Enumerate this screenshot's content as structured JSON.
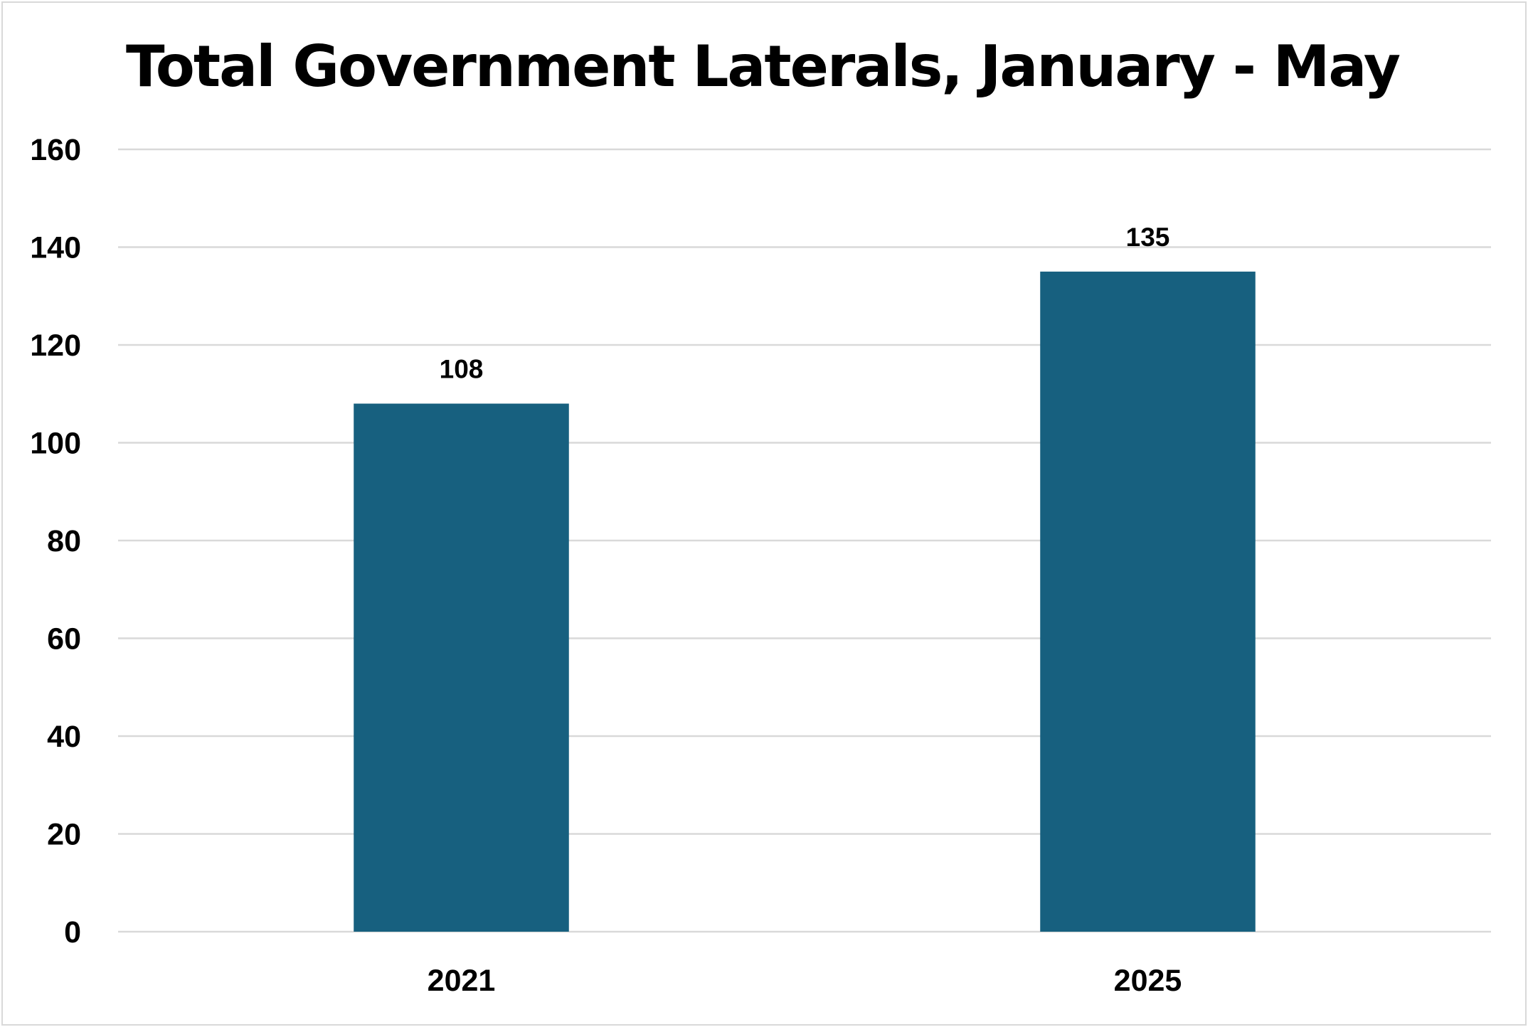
{
  "chart_data": {
    "type": "bar",
    "title": "Total Government Laterals, January - May",
    "categories": [
      "2021",
      "2025"
    ],
    "values": [
      108,
      135
    ],
    "data_labels": [
      "108",
      "135"
    ],
    "xlabel": "",
    "ylabel": "",
    "ylim": [
      0,
      160
    ],
    "yticks": [
      0,
      20,
      40,
      60,
      80,
      100,
      120,
      140,
      160
    ],
    "grid": true,
    "legend": "none",
    "bar_color": "#17607f",
    "gridline_color": "#d9d9d9"
  }
}
